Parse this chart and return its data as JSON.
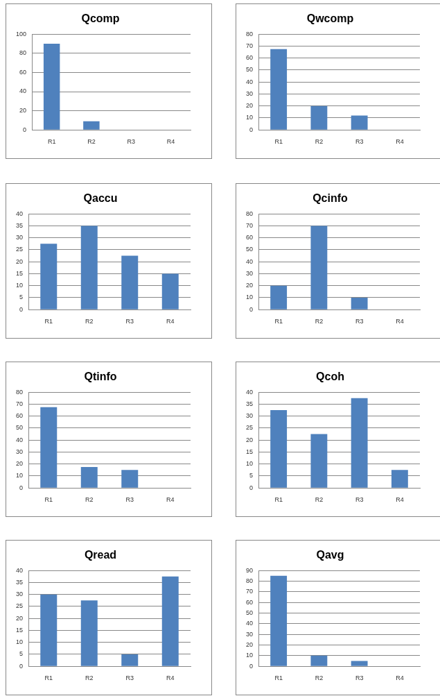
{
  "chart_data": [
    {
      "type": "bar",
      "title": "Qcomp",
      "categories": [
        "R1",
        "R2",
        "R3",
        "R4"
      ],
      "values": [
        90,
        9,
        0,
        0
      ],
      "color": "#4f81bd",
      "ylim": [
        0,
        100
      ],
      "yticks": [
        0,
        20,
        40,
        60,
        80,
        100
      ],
      "grid": "y"
    },
    {
      "type": "bar",
      "title": "Qwcomp",
      "categories": [
        "R1",
        "R2",
        "R3",
        "R4"
      ],
      "values": [
        67.5,
        20,
        12,
        0
      ],
      "color": "#4f81bd",
      "ylim": [
        0,
        80
      ],
      "yticks": [
        0,
        10,
        20,
        30,
        40,
        50,
        60,
        70,
        80
      ],
      "grid": "y"
    },
    {
      "type": "bar",
      "title": "Qaccu",
      "categories": [
        "R1",
        "R2",
        "R3",
        "R4"
      ],
      "values": [
        27.5,
        35,
        22.5,
        15
      ],
      "color": "#4f81bd",
      "ylim": [
        0,
        40
      ],
      "yticks": [
        0,
        5,
        10,
        15,
        20,
        25,
        30,
        35,
        40
      ],
      "grid": "y"
    },
    {
      "type": "bar",
      "title": "Qcinfo",
      "categories": [
        "R1",
        "R2",
        "R3",
        "R4"
      ],
      "values": [
        20,
        70,
        10,
        0
      ],
      "color": "#4f81bd",
      "ylim": [
        0,
        80
      ],
      "yticks": [
        0,
        10,
        20,
        30,
        40,
        50,
        60,
        70,
        80
      ],
      "grid": "y"
    },
    {
      "type": "bar",
      "title": "Qtinfo",
      "categories": [
        "R1",
        "R2",
        "R3",
        "R4"
      ],
      "values": [
        67.5,
        17.5,
        15,
        0
      ],
      "color": "#4f81bd",
      "ylim": [
        0,
        80
      ],
      "yticks": [
        0,
        10,
        20,
        30,
        40,
        50,
        60,
        70,
        80
      ],
      "grid": "y"
    },
    {
      "type": "bar",
      "title": "Qcoh",
      "categories": [
        "R1",
        "R2",
        "R3",
        "R4"
      ],
      "values": [
        32.5,
        22.5,
        37.5,
        7.5
      ],
      "color": "#4f81bd",
      "ylim": [
        0,
        40
      ],
      "yticks": [
        0,
        5,
        10,
        15,
        20,
        25,
        30,
        35,
        40
      ],
      "grid": "y"
    },
    {
      "type": "bar",
      "title": "Qread",
      "categories": [
        "R1",
        "R2",
        "R3",
        "R4"
      ],
      "values": [
        30,
        27.5,
        5,
        37.5
      ],
      "color": "#4f81bd",
      "ylim": [
        0,
        40
      ],
      "yticks": [
        0,
        5,
        10,
        15,
        20,
        25,
        30,
        35,
        40
      ],
      "grid": "y"
    },
    {
      "type": "bar",
      "title": "Qavg",
      "categories": [
        "R1",
        "R2",
        "R3",
        "R4"
      ],
      "values": [
        85,
        10,
        5,
        0
      ],
      "color": "#4f81bd",
      "ylim": [
        0,
        90
      ],
      "yticks": [
        0,
        10,
        20,
        30,
        40,
        50,
        60,
        70,
        80,
        90
      ],
      "grid": "y"
    }
  ]
}
